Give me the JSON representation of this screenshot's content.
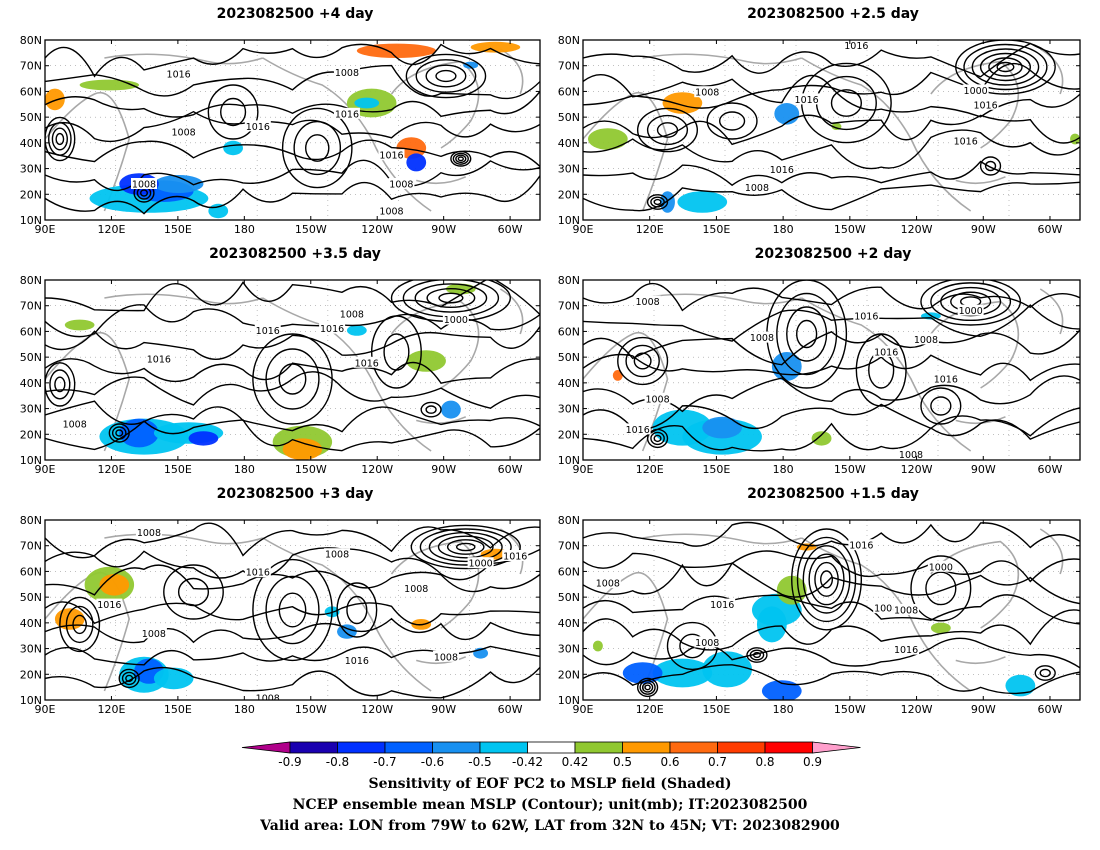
{
  "panels": [
    {
      "title": "2023082500  +4 day"
    },
    {
      "title": "2023082500  +2.5 day"
    },
    {
      "title": "2023082500  +3.5 day"
    },
    {
      "title": "2023082500  +2 day"
    },
    {
      "title": "2023082500  +3 day"
    },
    {
      "title": "2023082500  +1.5 day"
    }
  ],
  "axes": {
    "lon_ticks": [
      "90E",
      "120E",
      "150E",
      "180",
      "150W",
      "120W",
      "90W",
      "60W"
    ],
    "lat_ticks": [
      "10N",
      "20N",
      "30N",
      "40N",
      "50N",
      "60N",
      "70N",
      "80N"
    ]
  },
  "contour_labels": {
    "p0": [
      "1016",
      "1008",
      "1008",
      "1016",
      "1016",
      "1016",
      "1008",
      "1008",
      "1008"
    ],
    "p1": [
      "1016",
      "1008",
      "1000",
      "1016",
      "1016",
      "1008",
      "1016",
      "1016"
    ],
    "p2": [
      "1016",
      "1008",
      "1016",
      "1016",
      "1016",
      "1000",
      "1008"
    ],
    "p3": [
      "1008",
      "1016",
      "1008",
      "1016",
      "1000",
      "1008",
      "1016",
      "1008",
      "1016",
      "1008"
    ],
    "p4": [
      "1008",
      "1008",
      "1016",
      "1016",
      "1008",
      "1008",
      "1016",
      "1008",
      "1000",
      "1016",
      "1008"
    ],
    "p5": [
      "1016",
      "1008",
      "1016",
      "1008",
      "1000",
      "1008",
      "1008",
      "1016"
    ]
  },
  "colorbar": {
    "labels": [
      "-0.9",
      "-0.8",
      "-0.7",
      "-0.6",
      "-0.5",
      "-0.42",
      "0.42",
      "0.5",
      "0.6",
      "0.7",
      "0.8",
      "0.9"
    ],
    "colors": [
      "#1a00b0",
      "#0030ff",
      "#0060ff",
      "#1890f0",
      "#00c4f0",
      "#ffffff",
      "#90c830",
      "#ff9900",
      "#ff6a10",
      "#ff3c00",
      "#ff0000"
    ],
    "low_arrow": "#b0008a",
    "high_arrow": "#ff9fcc"
  },
  "caption": {
    "line1": "Sensitivity of EOF PC2 to MSLP field (Shaded)",
    "line2": "NCEP ensemble mean MSLP (Contour); unit(mb); IT:2023082500",
    "line3": "Valid area: LON from 79W to 62W, LAT from 32N to 45N; VT: 2023082900"
  }
}
